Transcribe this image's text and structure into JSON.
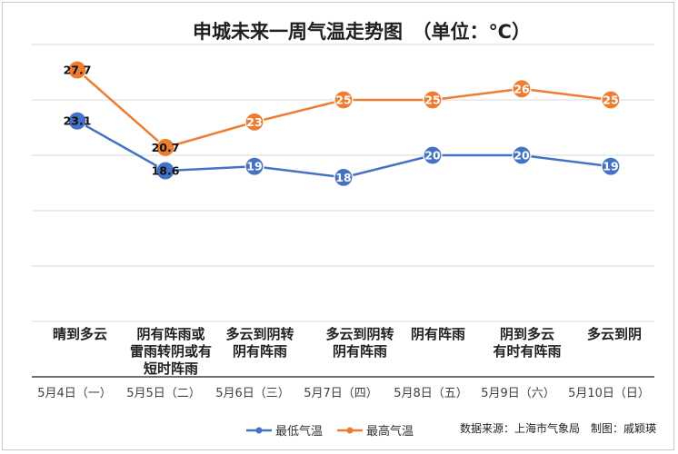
{
  "chart_data": {
    "type": "line",
    "title": "申城未来一周气温走势图　（单位：℃）",
    "categories": [
      "5月4日（一）",
      "5月5日（二）",
      "5月6日（三）",
      "5月7日（四）",
      "5月8日（五）",
      "5月9日（六）",
      "5月10日（日）"
    ],
    "conditions": [
      [
        "晴到多云"
      ],
      [
        "阴有阵雨或",
        "雷雨转阴或有",
        "短时阵雨"
      ],
      [
        "多云到阴转",
        "阴有阵雨"
      ],
      [
        "多云到阴转",
        "阴有阵雨"
      ],
      [
        "阴有阵雨"
      ],
      [
        "阴到多云",
        "有时有阵雨"
      ],
      [
        "多云到阴"
      ]
    ],
    "series": [
      {
        "name": "最低气温",
        "color": "#4472c4",
        "values": [
          23.1,
          18.6,
          19,
          18,
          20,
          20,
          19
        ],
        "labels": [
          "23.1",
          "18.6",
          "19",
          "18",
          "20",
          "20",
          "19"
        ]
      },
      {
        "name": "最高气温",
        "color": "#ed7d31",
        "values": [
          27.7,
          20.7,
          23,
          25,
          25,
          26,
          25
        ],
        "labels": [
          "27.7",
          "20.7",
          "23",
          "25",
          "25",
          "26",
          "25"
        ]
      }
    ],
    "ylim": [
      0,
      30
    ],
    "grid": true,
    "legend": "bottom-center"
  },
  "source": "数据来源：上海市气象局　制图：戚颖瑛"
}
